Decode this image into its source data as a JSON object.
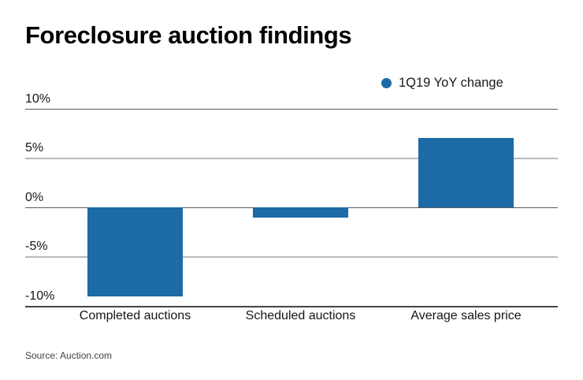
{
  "title": "Foreclosure auction findings",
  "legend": {
    "label": "1Q19 YoY change",
    "marker_color": "#1c6ba6"
  },
  "source": "Source: Auction.com",
  "colors": {
    "bar": "#1c6ba6",
    "major_grid": "#58595b",
    "minor_grid": "#b7b9bb",
    "axis": "#454547",
    "text": "#161616"
  },
  "chart_data": {
    "type": "bar",
    "title": "Foreclosure auction findings",
    "categories": [
      "Completed auctions",
      "Scheduled auctions",
      "Average sales price"
    ],
    "series": [
      {
        "name": "1Q19 YoY change",
        "values": [
          -9.1,
          -1.1,
          7.0
        ]
      }
    ],
    "xlabel": "",
    "ylabel": "",
    "ylim": [
      -10,
      10
    ],
    "yticks": [
      10,
      5,
      0,
      -5,
      -10
    ],
    "ytick_labels": [
      "10%",
      "5%",
      "0%",
      "-5%",
      "-10%"
    ],
    "grid": true,
    "legend_position": "top-right",
    "bar_color": "#1c6ba6"
  }
}
